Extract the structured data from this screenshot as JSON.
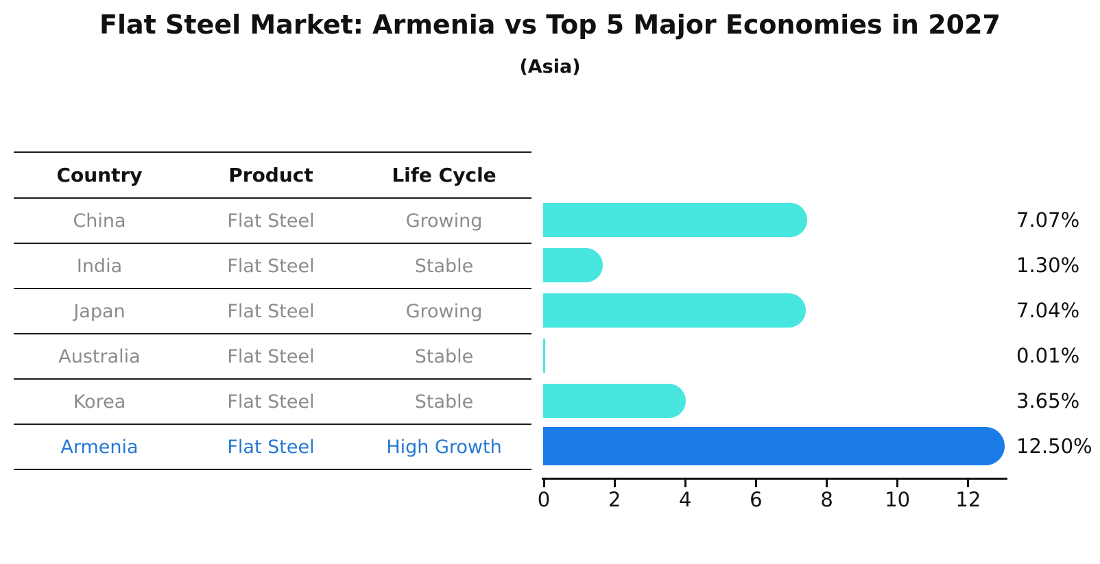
{
  "title": "Flat Steel Market: Armenia vs Top 5 Major Economies in 2027",
  "subtitle": "(Asia)",
  "table": {
    "columns": [
      "Country",
      "Product",
      "Life Cycle"
    ],
    "rows": [
      {
        "country": "China",
        "product": "Flat Steel",
        "life_cycle": "Growing",
        "highlight": false
      },
      {
        "country": "India",
        "product": "Flat Steel",
        "life_cycle": "Stable",
        "highlight": false
      },
      {
        "country": "Japan",
        "product": "Flat Steel",
        "life_cycle": "Growing",
        "highlight": false
      },
      {
        "country": "Australia",
        "product": "Flat Steel",
        "life_cycle": "Stable",
        "highlight": false
      },
      {
        "country": "Korea",
        "product": "Flat Steel",
        "life_cycle": "Stable",
        "highlight": false
      },
      {
        "country": "Armenia",
        "product": "Flat Steel",
        "life_cycle": "High Growth",
        "highlight": true
      }
    ]
  },
  "chart_data": {
    "type": "bar",
    "orientation": "horizontal",
    "title": "Flat Steel Market: Armenia vs Top 5 Major Economies in 2027",
    "subtitle": "(Asia)",
    "categories": [
      "China",
      "India",
      "Japan",
      "Australia",
      "Korea",
      "Armenia"
    ],
    "values": [
      7.07,
      1.3,
      7.04,
      0.01,
      3.65,
      12.5
    ],
    "value_labels": [
      "7.07%",
      "1.30%",
      "7.04%",
      "0.01%",
      "3.65%",
      "12.50%"
    ],
    "highlight_index": 5,
    "highlight_style": "dotted-edge",
    "x_ticks": [
      0,
      2,
      4,
      6,
      8,
      10,
      12
    ],
    "xlim": [
      0,
      13.1
    ],
    "grid": false,
    "legend": false,
    "xlabel": "",
    "ylabel": ""
  },
  "colors": {
    "bar": "#47E7DF",
    "highlight_bar": "#1B7CE8",
    "highlight_text": "#2478D2",
    "muted_text": "#8C8C8C",
    "heading_text": "#111111",
    "axis": "#111111"
  }
}
